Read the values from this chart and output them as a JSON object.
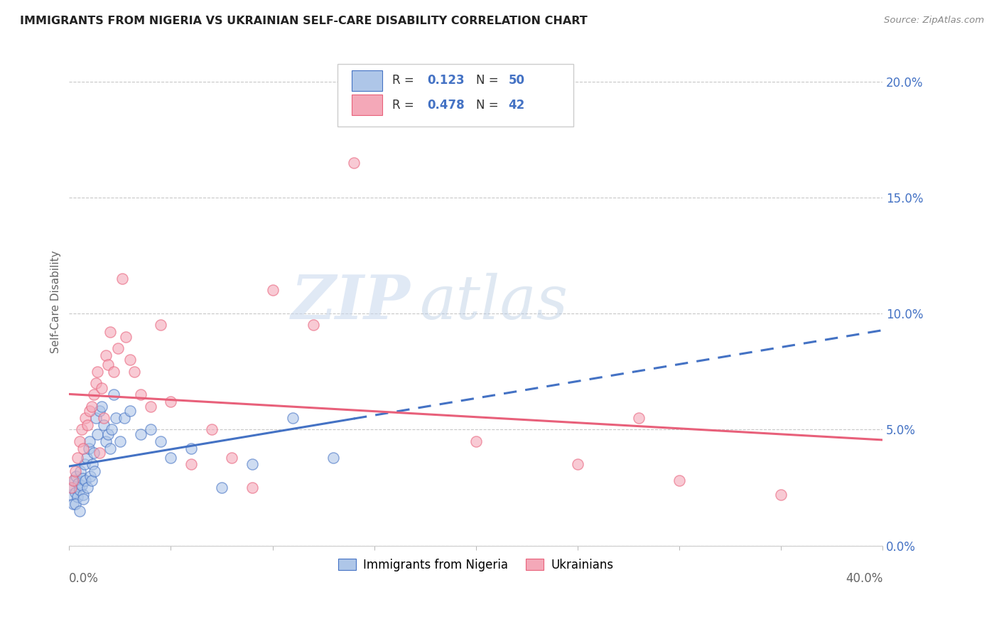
{
  "title": "IMMIGRANTS FROM NIGERIA VS UKRAINIAN SELF-CARE DISABILITY CORRELATION CHART",
  "source": "Source: ZipAtlas.com",
  "ylabel": "Self-Care Disability",
  "legend_labels": [
    "Immigrants from Nigeria",
    "Ukrainians"
  ],
  "nigeria_R": "0.123",
  "nigeria_N": "50",
  "ukraine_R": "0.478",
  "ukraine_N": "42",
  "nigeria_color": "#aec6e8",
  "ukraine_color": "#f4a8b8",
  "nigeria_line_color": "#4472c4",
  "ukraine_line_color": "#e8607a",
  "right_axis_color": "#4472c4",
  "title_color": "#222222",
  "grid_color": "#c8c8c8",
  "background_color": "#ffffff",
  "watermark_zip": "ZIP",
  "watermark_atlas": "atlas",
  "nigeria_x": [
    0.1,
    0.15,
    0.2,
    0.25,
    0.3,
    0.35,
    0.4,
    0.45,
    0.5,
    0.55,
    0.6,
    0.65,
    0.7,
    0.75,
    0.8,
    0.85,
    0.9,
    0.95,
    1.0,
    1.05,
    1.1,
    1.15,
    1.2,
    1.25,
    1.3,
    1.4,
    1.5,
    1.6,
    1.7,
    1.8,
    1.9,
    2.0,
    2.1,
    2.2,
    2.3,
    2.5,
    2.7,
    3.0,
    3.5,
    4.0,
    4.5,
    5.0,
    6.0,
    7.5,
    9.0,
    11.0,
    13.0,
    0.3,
    0.5,
    0.7
  ],
  "nigeria_y": [
    2.2,
    2.5,
    1.8,
    2.8,
    2.3,
    3.0,
    2.1,
    2.7,
    2.4,
    3.2,
    2.6,
    2.9,
    2.2,
    3.5,
    2.8,
    3.8,
    2.5,
    4.2,
    4.5,
    3.0,
    2.8,
    3.5,
    4.0,
    3.2,
    5.5,
    4.8,
    5.8,
    6.0,
    5.2,
    4.5,
    4.8,
    4.2,
    5.0,
    6.5,
    5.5,
    4.5,
    5.5,
    5.8,
    4.8,
    5.0,
    4.5,
    3.8,
    4.2,
    2.5,
    3.5,
    5.5,
    3.8,
    1.8,
    1.5,
    2.0
  ],
  "ukraine_x": [
    0.1,
    0.2,
    0.3,
    0.4,
    0.5,
    0.6,
    0.7,
    0.8,
    0.9,
    1.0,
    1.1,
    1.2,
    1.3,
    1.4,
    1.5,
    1.6,
    1.7,
    1.8,
    1.9,
    2.0,
    2.2,
    2.4,
    2.6,
    2.8,
    3.0,
    3.2,
    3.5,
    4.0,
    4.5,
    5.0,
    6.0,
    7.0,
    8.0,
    9.0,
    10.0,
    12.0,
    14.0,
    25.0,
    30.0,
    35.0,
    20.0,
    28.0
  ],
  "ukraine_y": [
    2.5,
    2.8,
    3.2,
    3.8,
    4.5,
    5.0,
    4.2,
    5.5,
    5.2,
    5.8,
    6.0,
    6.5,
    7.0,
    7.5,
    4.0,
    6.8,
    5.5,
    8.2,
    7.8,
    9.2,
    7.5,
    8.5,
    11.5,
    9.0,
    8.0,
    7.5,
    6.5,
    6.0,
    9.5,
    6.2,
    3.5,
    5.0,
    3.8,
    2.5,
    11.0,
    9.5,
    16.5,
    3.5,
    2.8,
    2.2,
    4.5,
    5.5
  ],
  "xmin": 0.0,
  "xmax": 40.0,
  "ymin": 0.0,
  "ymax": 21.0,
  "ytick_positions": [
    0,
    5,
    10,
    15,
    20
  ],
  "ytick_labels": [
    "0.0%",
    "5.0%",
    "10.0%",
    "15.0%",
    "20.0%"
  ],
  "x_minor_ticks": [
    0,
    5,
    10,
    15,
    20,
    25,
    30,
    35,
    40
  ],
  "nigeria_solid_end": 14.0,
  "ukraine_solid_end": 40.0
}
